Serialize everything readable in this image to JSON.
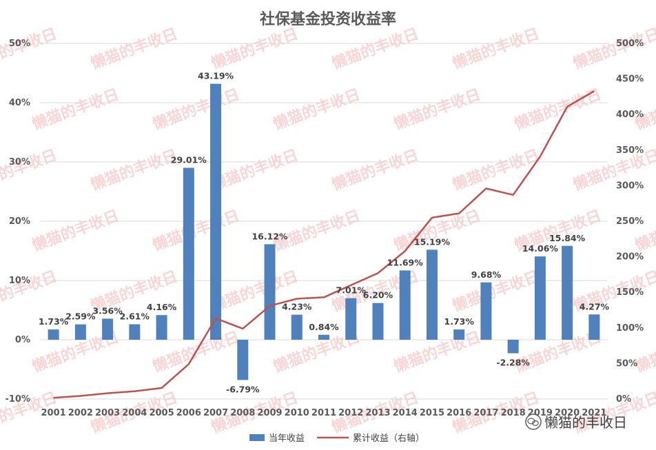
{
  "chart_data": {
    "type": "bar",
    "title": "社保基金投资收益率",
    "categories": [
      "2001",
      "2002",
      "2003",
      "2004",
      "2005",
      "2006",
      "2007",
      "2008",
      "2009",
      "2010",
      "2011",
      "2012",
      "2013",
      "2014",
      "2015",
      "2016",
      "2017",
      "2018",
      "2019",
      "2020",
      "2021"
    ],
    "series": [
      {
        "name": "当年收益",
        "type": "bar",
        "axis": "left",
        "color": "#4f81bd",
        "values": [
          1.73,
          2.59,
          3.56,
          2.61,
          4.16,
          29.01,
          43.19,
          -6.79,
          16.12,
          4.23,
          0.84,
          7.01,
          6.2,
          11.69,
          15.19,
          1.73,
          9.68,
          -2.28,
          14.06,
          15.84,
          4.27
        ],
        "labels": [
          "1.73%",
          "2.59%",
          "3.56%",
          "2.61%",
          "4.16%",
          "29.01%",
          "43.19%",
          "-6.79%",
          "16.12%",
          "4.23%",
          "0.84%",
          "7.01%",
          "6.20%",
          "11.69%",
          "15.19%",
          "1.73%",
          "9.68%",
          "-2.28%",
          "14.06%",
          "15.84%",
          "4.27%"
        ]
      },
      {
        "name": "累计收益（右轴）",
        "type": "line",
        "axis": "right",
        "color": "#c0504d",
        "values": [
          1.73,
          4.37,
          8.08,
          10.9,
          15.5,
          49.0,
          113.4,
          98.9,
          131.0,
          141.0,
          143.0,
          160.0,
          177.0,
          208.0,
          255.0,
          261.0,
          296.0,
          287.0,
          341.0,
          411.0,
          433.0
        ]
      }
    ],
    "left_axis": {
      "ylim": [
        -10,
        50
      ],
      "ticks": [
        "-10%",
        "0%",
        "10%",
        "20%",
        "30%",
        "40%",
        "50%"
      ]
    },
    "right_axis": {
      "ylim": [
        0,
        500
      ],
      "ticks": [
        "0%",
        "50%",
        "100%",
        "150%",
        "200%",
        "250%",
        "300%",
        "350%",
        "400%",
        "450%",
        "500%"
      ]
    },
    "grid": true,
    "legend": "bottom"
  },
  "watermark": {
    "text": "懒猫的丰收日",
    "color": "#f3a3a3"
  },
  "corner_brand": {
    "text": "懒猫的丰收日",
    "icon": "wechat-icon"
  }
}
